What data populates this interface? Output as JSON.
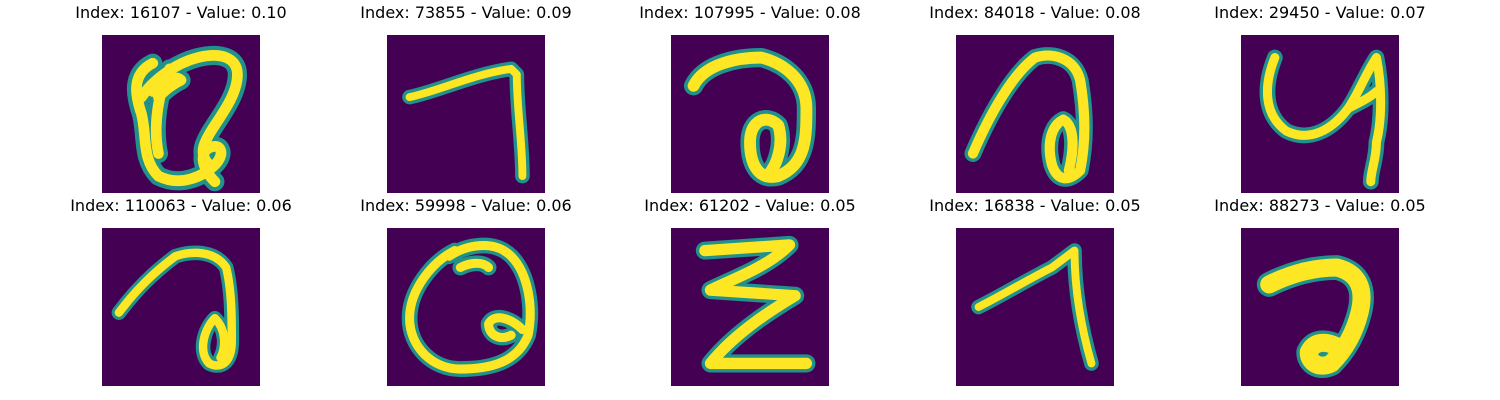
{
  "colors": {
    "background": "#440154",
    "stroke_core": "#fde725",
    "stroke_mid": "#5ec962",
    "stroke_edge": "#21918c"
  },
  "panels": [
    {
      "title": "Index: 16107 - Value: 0.10",
      "glyph": "tangled-loop",
      "colormap": "viridis"
    },
    {
      "title": "Index: 73855 - Value: 0.09",
      "glyph": "seven-like",
      "colormap": "viridis"
    },
    {
      "title": "Index: 107995 - Value: 0.08",
      "glyph": "hook-loop",
      "colormap": "viridis"
    },
    {
      "title": "Index: 84018 - Value: 0.08",
      "glyph": "slant-hook-loop",
      "colormap": "viridis"
    },
    {
      "title": "Index: 29450 - Value: 0.07",
      "glyph": "u-hook",
      "colormap": "viridis"
    },
    {
      "title": "Index: 110063 - Value: 0.06",
      "glyph": "hook-loop-thin",
      "colormap": "viridis"
    },
    {
      "title": "Index: 59998 - Value: 0.06",
      "glyph": "round-loop",
      "colormap": "viridis"
    },
    {
      "title": "Index: 61202 - Value: 0.05",
      "glyph": "zigzag",
      "colormap": "viridis"
    },
    {
      "title": "Index: 16838 - Value: 0.05",
      "glyph": "seven-slant",
      "colormap": "viridis"
    },
    {
      "title": "Index: 88273 - Value: 0.05",
      "glyph": "thick-hook",
      "colormap": "viridis"
    }
  ]
}
